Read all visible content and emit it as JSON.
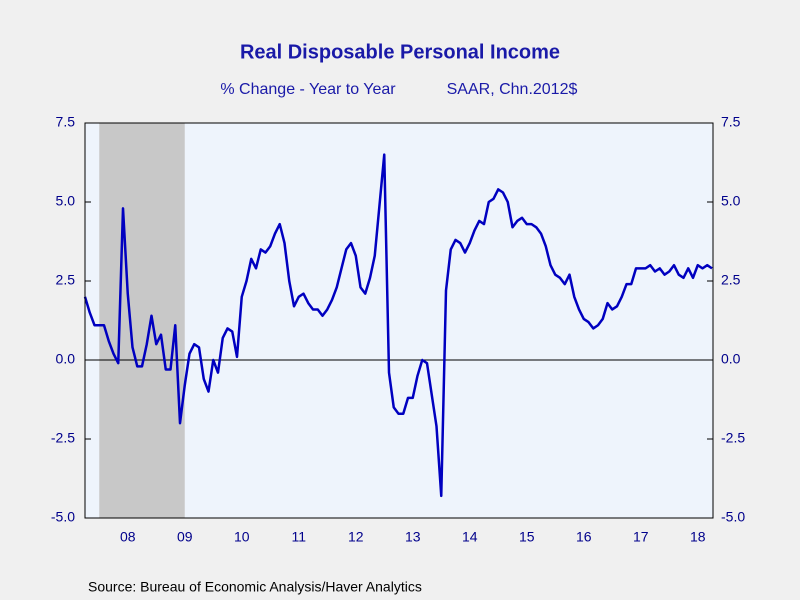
{
  "chart_data": {
    "type": "line",
    "title": "Real Disposable Personal Income",
    "subtitle": "% Change - Year to Year",
    "subtitle_right": "SAAR, Chn.2012$",
    "source": "Source:  Bureau of Economic Analysis/Haver Analytics",
    "categories": [
      null,
      null,
      null,
      null,
      null,
      null,
      null,
      null,
      null,
      "08",
      null,
      null,
      null,
      null,
      null,
      null,
      null,
      null,
      null,
      null,
      null,
      "09",
      null,
      null,
      null,
      null,
      null,
      null,
      null,
      null,
      null,
      null,
      null,
      "10",
      null,
      null,
      null,
      null,
      null,
      null,
      null,
      null,
      null,
      null,
      null,
      "11",
      null,
      null,
      null,
      null,
      null,
      null,
      null,
      null,
      null,
      null,
      null,
      "12",
      null,
      null,
      null,
      null,
      null,
      null,
      null,
      null,
      null,
      null,
      null,
      "13",
      null,
      null,
      null,
      null,
      null,
      null,
      null,
      null,
      null,
      null,
      null,
      "14",
      null,
      null,
      null,
      null,
      null,
      null,
      null,
      null,
      null,
      null,
      null,
      "15",
      null,
      null,
      null,
      null,
      null,
      null,
      null,
      null,
      null,
      null,
      null,
      "16",
      null,
      null,
      null,
      null,
      null,
      null,
      null,
      null,
      null,
      null,
      null,
      "17",
      null,
      null,
      null,
      null,
      null,
      null,
      null,
      null,
      null,
      null,
      null,
      "18",
      null,
      null,
      null
    ],
    "series": [
      {
        "name": "Real Disposable Personal Income",
        "color": "#0000c0",
        "values": [
          2.0,
          1.5,
          1.1,
          1.1,
          1.1,
          0.6,
          0.2,
          -0.1,
          4.8,
          2.1,
          0.4,
          -0.2,
          -0.2,
          0.5,
          1.4,
          0.5,
          0.8,
          -0.3,
          -0.3,
          1.1,
          -2.0,
          -0.8,
          0.2,
          0.5,
          0.4,
          -0.6,
          -1.0,
          0.0,
          -0.4,
          0.7,
          1.0,
          0.9,
          0.1,
          2.0,
          2.5,
          3.2,
          2.9,
          3.5,
          3.4,
          3.6,
          4.0,
          4.3,
          3.7,
          2.5,
          1.7,
          2.0,
          2.1,
          1.8,
          1.6,
          1.6,
          1.4,
          1.6,
          1.9,
          2.3,
          2.9,
          3.5,
          3.7,
          3.3,
          2.3,
          2.1,
          2.6,
          3.3,
          4.9,
          6.5,
          -0.4,
          -1.5,
          -1.7,
          -1.7,
          -1.2,
          -1.2,
          -0.5,
          0.0,
          -0.1,
          -1.1,
          -2.1,
          -4.3,
          2.2,
          3.5,
          3.8,
          3.7,
          3.4,
          3.7,
          4.1,
          4.4,
          4.3,
          5.0,
          5.1,
          5.4,
          5.3,
          5.0,
          4.2,
          4.4,
          4.5,
          4.3,
          4.3,
          4.2,
          4.0,
          3.6,
          3.0,
          2.7,
          2.6,
          2.4,
          2.7,
          2.0,
          1.6,
          1.3,
          1.2,
          1.0,
          1.1,
          1.3,
          1.8,
          1.6,
          1.7,
          2.0,
          2.4,
          2.4,
          2.9,
          2.9,
          2.9,
          3.0,
          2.8,
          2.9,
          2.7,
          2.8,
          3.0,
          2.7,
          2.6,
          2.9,
          2.6,
          3.0,
          2.9,
          3.0,
          2.9
        ]
      }
    ],
    "ylim": [
      -5.0,
      7.5
    ],
    "yticks": [
      {
        "value": 7.5,
        "label": "7.5"
      },
      {
        "value": 5,
        "label": "5.0"
      },
      {
        "value": 2.5,
        "label": "2.5"
      },
      {
        "value": 0,
        "label": "0.0"
      },
      {
        "value": -2.5,
        "label": "-2.5"
      },
      {
        "value": -5,
        "label": "-5.0"
      }
    ],
    "y2lim": [
      -5.0,
      7.5
    ],
    "y2ticks": [
      {
        "value": 7.5,
        "label": "7.5"
      },
      {
        "value": 5,
        "label": "5.0"
      },
      {
        "value": 2.5,
        "label": "2.5"
      },
      {
        "value": 0,
        "label": "0.0"
      },
      {
        "value": -2.5,
        "label": "-2.5"
      },
      {
        "value": -5,
        "label": "-5.0"
      }
    ],
    "recession": {
      "from": 3,
      "to": 21,
      "color": "#c8c8c8"
    },
    "plot_background": "#eef4fc",
    "zero_line": true
  }
}
